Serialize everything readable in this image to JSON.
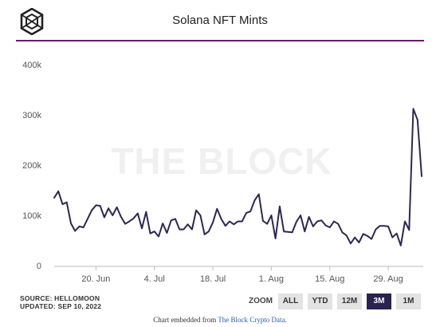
{
  "header": {
    "title": "Solana NFT Mints"
  },
  "watermark": "THE BLOCK",
  "footer": {
    "source": "SOURCE: HELLOMOON",
    "updated": "UPDATED: SEP 10, 2022",
    "embed_prefix": "Chart embedded from ",
    "embed_link": "The Block Crypto Data",
    "embed_suffix": "."
  },
  "zoom": {
    "label": "ZOOM",
    "buttons": [
      "ALL",
      "YTD",
      "12M",
      "3M",
      "1M"
    ],
    "active": "3M"
  },
  "colors": {
    "line": "#2e2653",
    "rule": "#6a1b6e",
    "active_button": "#2a2250"
  },
  "chart_data": {
    "type": "line",
    "title": "Solana NFT Mints",
    "x_start": "2022-06-10",
    "x_ticks": [
      "20. Jun",
      "4. Jul",
      "18. Jul",
      "1. Aug",
      "15. Aug",
      "29. Aug"
    ],
    "y_ticks": [
      "0",
      "100k",
      "200k",
      "300k",
      "400k"
    ],
    "ylim": [
      0,
      420000
    ],
    "grid": false,
    "series": [
      {
        "values": [
          135000,
          148000,
          122000,
          126000,
          84000,
          69000,
          78000,
          76000,
          93000,
          110000,
          120000,
          119000,
          96000,
          114000,
          100000,
          116000,
          97000,
          83000,
          88000,
          94000,
          104000,
          74000,
          107000,
          64000,
          68000,
          58000,
          84000,
          65000,
          90000,
          93000,
          72000,
          72000,
          82000,
          72000,
          110000,
          100000,
          62000,
          68000,
          86000,
          113000,
          93000,
          79000,
          88000,
          82000,
          88000,
          88000,
          105000,
          108000,
          130000,
          142000,
          89000,
          83000,
          100000,
          54000,
          118000,
          68000,
          67000,
          66000,
          87000,
          100000,
          68000,
          97000,
          78000,
          88000,
          90000,
          80000,
          76000,
          88000,
          83000,
          66000,
          60000,
          44000,
          56000,
          46000,
          63000,
          59000,
          53000,
          72000,
          79000,
          79000,
          78000,
          56000,
          64000,
          40000,
          88000,
          71000,
          312000,
          290000,
          178000
        ]
      }
    ]
  }
}
